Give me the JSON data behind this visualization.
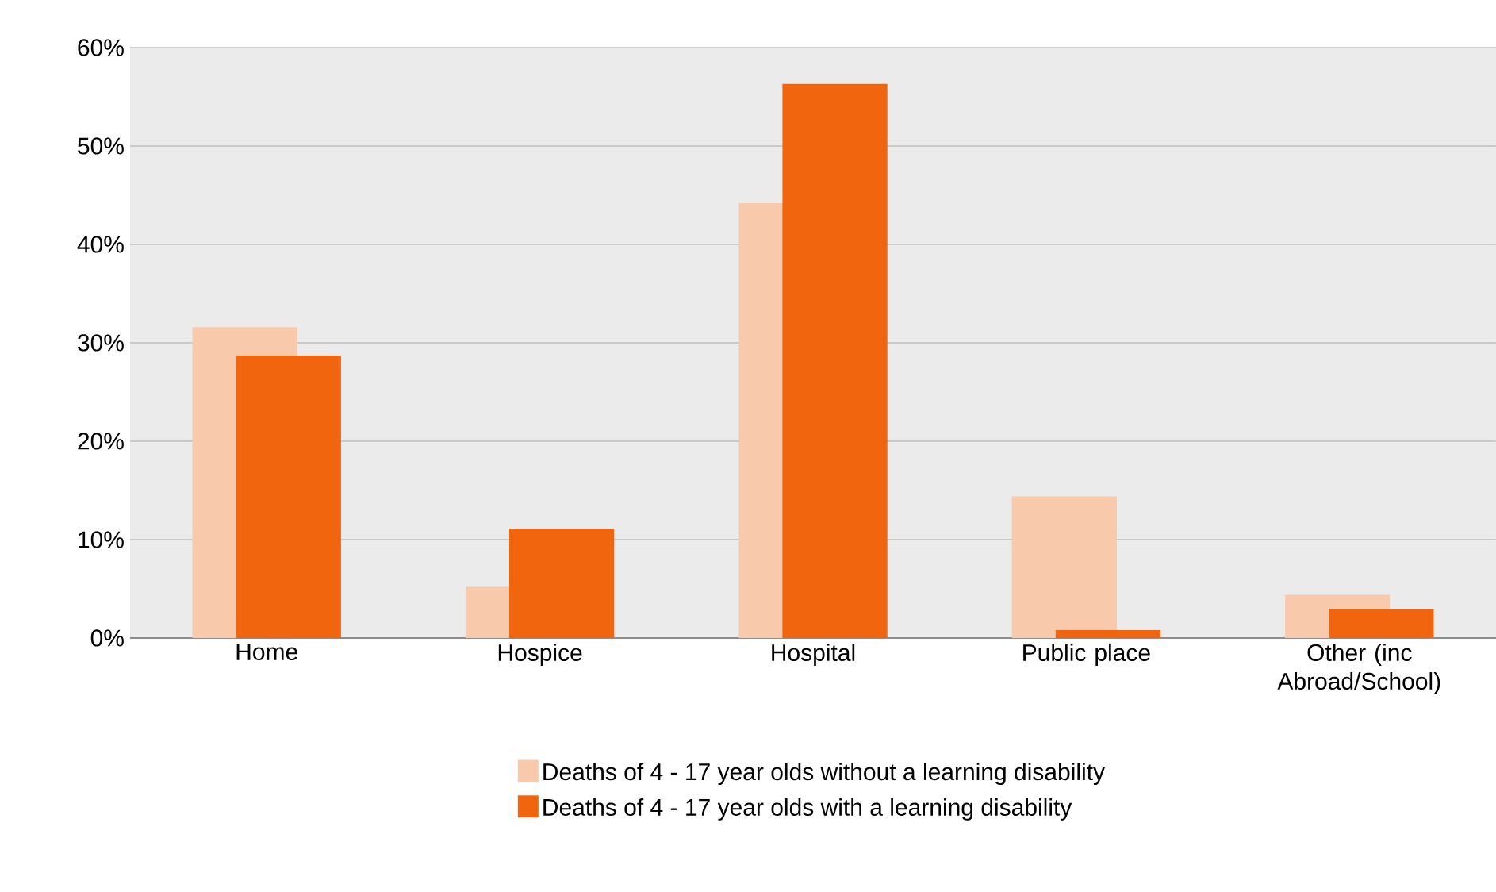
{
  "chart_data": {
    "type": "bar",
    "categories": [
      "Home",
      "Hospice",
      "Hospital",
      "Public place",
      "Other (inc Abroad/School)"
    ],
    "series": [
      {
        "name": "Deaths of 4 - 17 year olds without a learning disability",
        "color": "#f8c9aa",
        "values": [
          31.6,
          5.2,
          44.2,
          14.4,
          4.4
        ]
      },
      {
        "name": "Deaths of 4 - 17 year olds with a learning disability",
        "color": "#f0650e",
        "values": [
          28.7,
          11.1,
          56.3,
          0.8,
          2.9
        ]
      }
    ],
    "ylim": [
      0,
      60
    ],
    "yticks": [
      {
        "value": 0,
        "label": "0%"
      },
      {
        "value": 10,
        "label": "10%"
      },
      {
        "value": 20,
        "label": "20%"
      },
      {
        "value": 30,
        "label": "30%"
      },
      {
        "value": 40,
        "label": "40%"
      },
      {
        "value": 50,
        "label": "50%"
      },
      {
        "value": 60,
        "label": "60%"
      }
    ],
    "grid": "y",
    "legend": "bottom"
  }
}
